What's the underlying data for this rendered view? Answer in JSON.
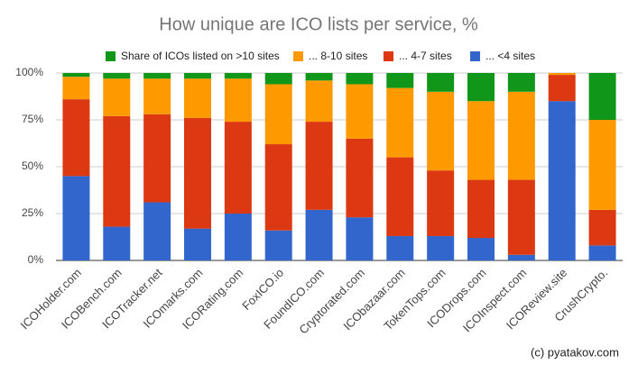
{
  "chart_data": {
    "type": "stacked_bar",
    "title": "How unique are ICO lists per service, %",
    "source": "(c) pyatakov.com",
    "categories": [
      "ICOHolder.com",
      "ICOBench.com",
      "ICOTracker.net",
      "ICOmarks.com",
      "ICORating.com",
      "FoxICO.io",
      "FoundICO.com",
      "Cryptorated.com",
      "ICObazaar.com",
      "TokenTops.com",
      "ICODrops.com",
      "ICOInspect.com",
      "ICOReview.site",
      "CrushCrypto."
    ],
    "series": [
      {
        "name": "... <4 sites",
        "color": "#3366cc",
        "values": [
          45,
          18,
          31,
          17,
          25,
          16,
          27,
          23,
          13,
          13,
          12,
          3,
          85,
          8
        ]
      },
      {
        "name": "... 4-7 sites",
        "color": "#dc3912",
        "values": [
          41,
          59,
          47,
          59,
          49,
          46,
          47,
          42,
          42,
          35,
          31,
          40,
          14,
          19
        ]
      },
      {
        "name": "... 8-10 sites",
        "color": "#ff9900",
        "values": [
          12,
          20,
          19,
          21,
          23,
          32,
          22,
          29,
          37,
          42,
          42,
          47,
          1,
          48
        ]
      },
      {
        "name": "Share of ICOs listed on >10 sites",
        "color": "#109618",
        "values": [
          2,
          3,
          3,
          3,
          3,
          6,
          4,
          6,
          8,
          10,
          15,
          10,
          0,
          25
        ]
      }
    ],
    "ylim": [
      0,
      100
    ],
    "yticks": [
      {
        "value": 0,
        "label": "0%"
      },
      {
        "value": 25,
        "label": "25%"
      },
      {
        "value": 50,
        "label": "50%"
      },
      {
        "value": 75,
        "label": "75%"
      },
      {
        "value": 100,
        "label": "100%"
      }
    ],
    "grid": true
  }
}
